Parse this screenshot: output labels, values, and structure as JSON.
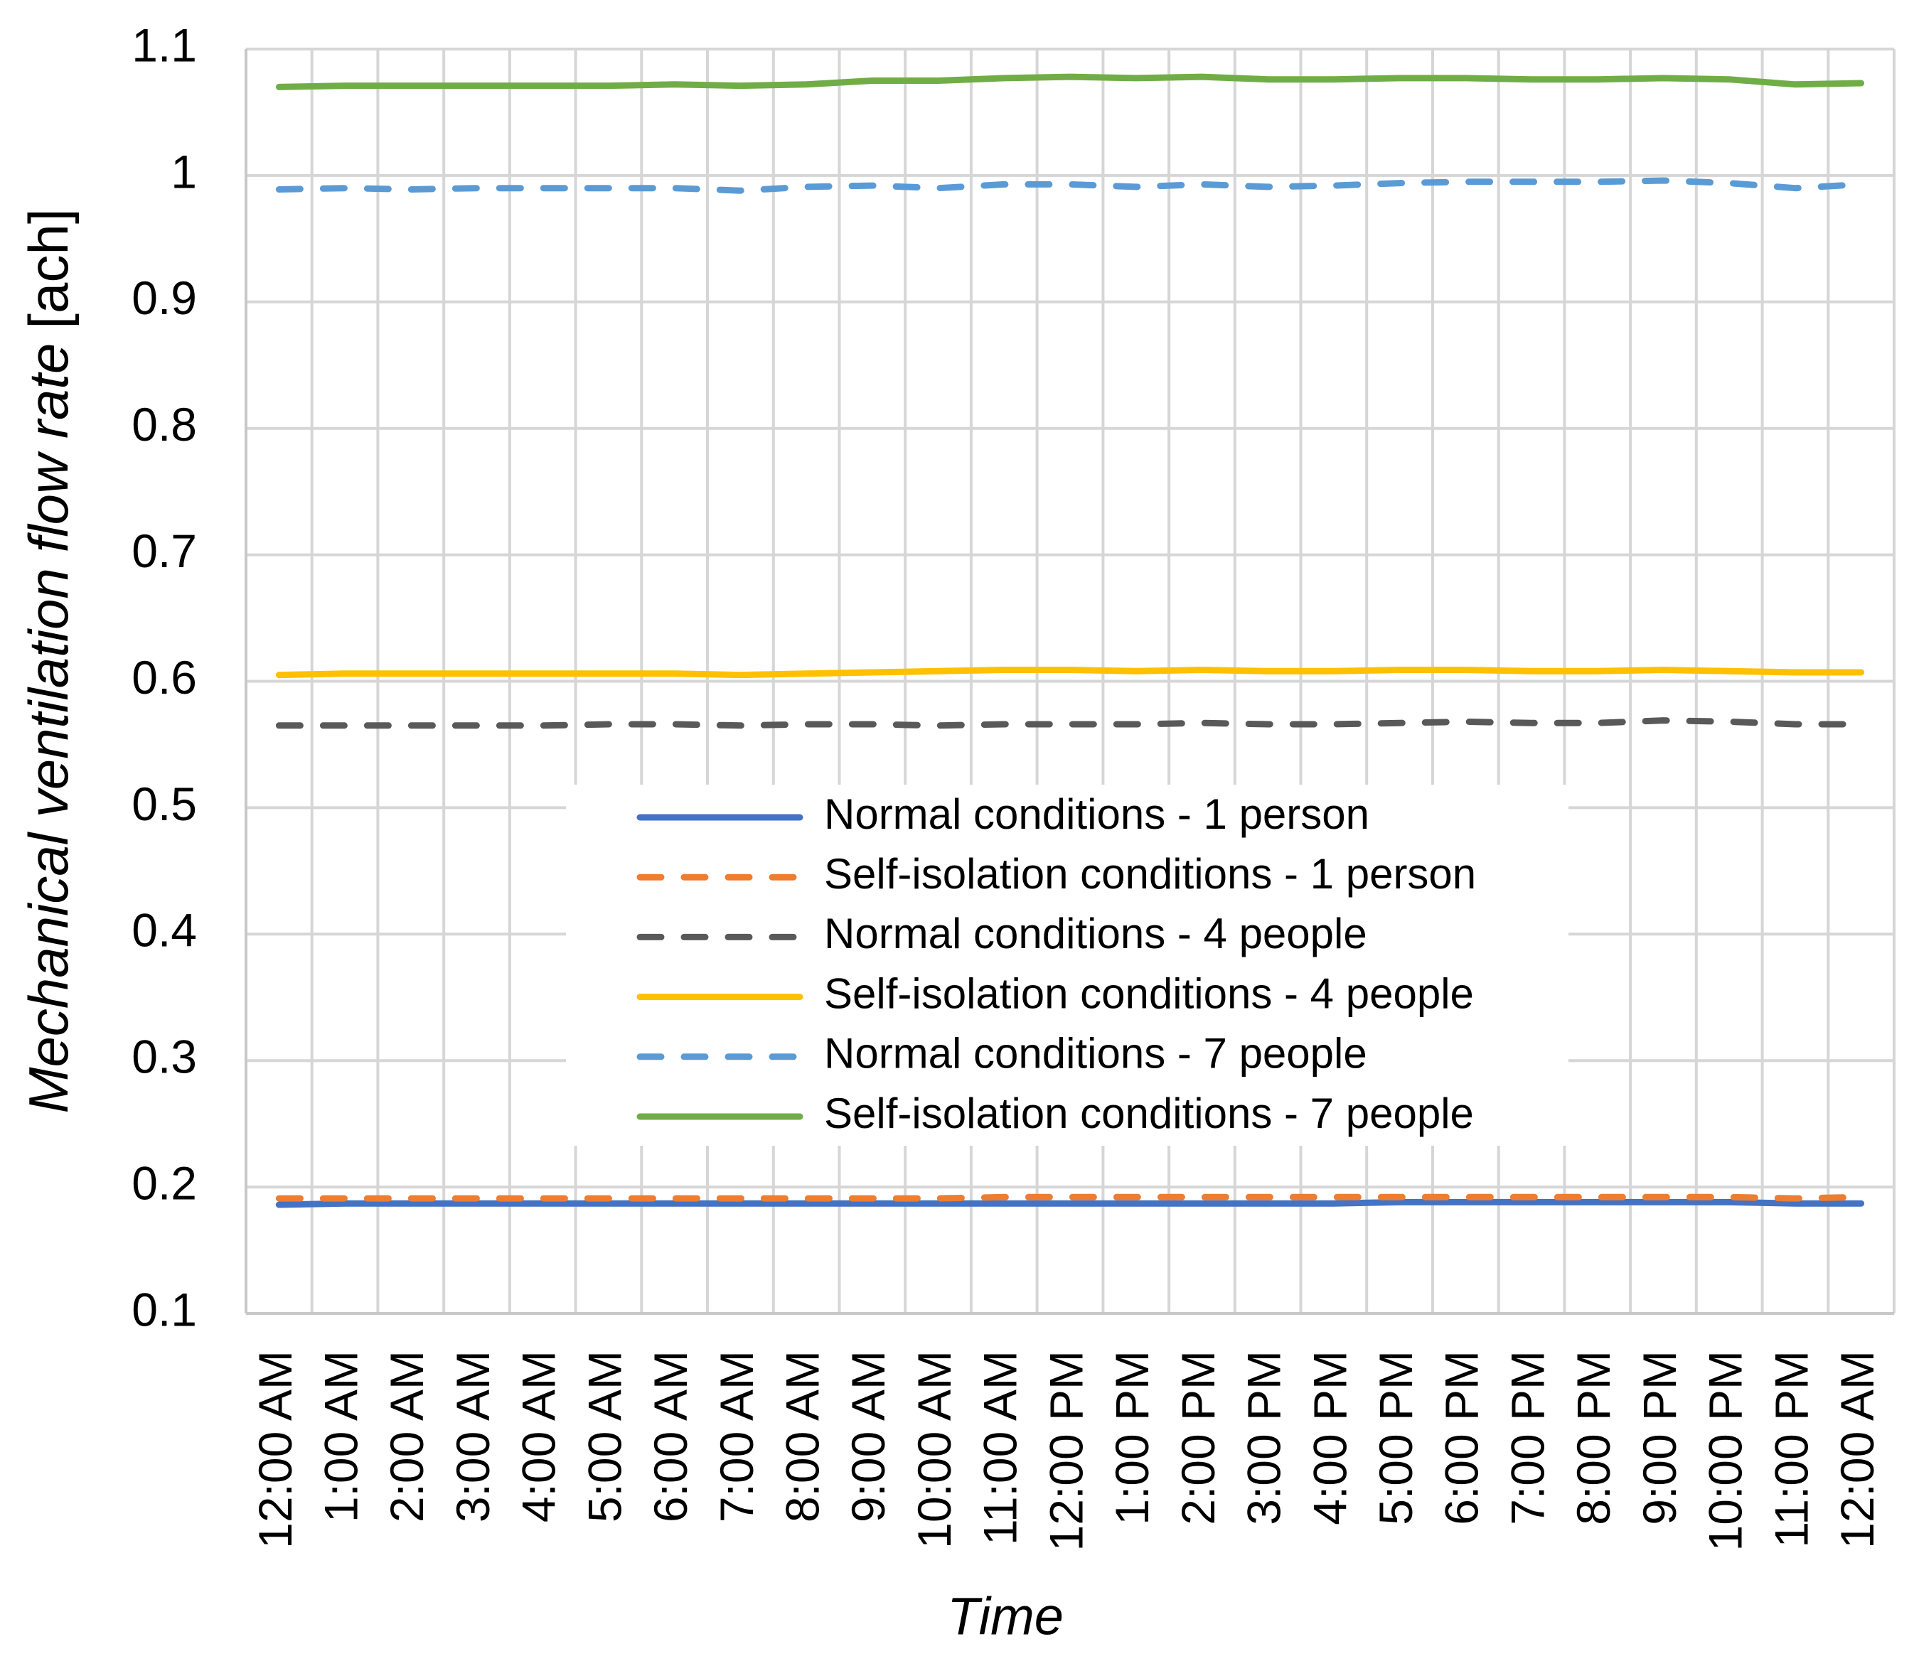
{
  "chart_data": {
    "type": "line",
    "xlabel": "Time",
    "ylabel": "Mechanical ventilation flow rate",
    "ylabel_unit": "[ach]",
    "ylim": [
      0.1,
      1.1
    ],
    "yticks": [
      0.1,
      0.2,
      0.3,
      0.4,
      0.5,
      0.6,
      0.7,
      0.8,
      0.9,
      1,
      1.1
    ],
    "grid": true,
    "legend_position": "center",
    "categories": [
      "12:00 AM",
      "1:00 AM",
      "2:00 AM",
      "3:00 AM",
      "4:00 AM",
      "5:00 AM",
      "6:00 AM",
      "7:00 AM",
      "8:00 AM",
      "9:00 AM",
      "10:00 AM",
      "11:00 AM",
      "12:00 PM",
      "1:00 PM",
      "2:00 PM",
      "3:00 PM",
      "4:00 PM",
      "5:00 PM",
      "6:00 PM",
      "7:00 PM",
      "8:00 PM",
      "9:00 PM",
      "10:00 PM",
      "11:00 PM",
      "12:00 AM"
    ],
    "series": [
      {
        "name": "Normal conditions - 1 person",
        "color": "#4472C4",
        "dashed": false,
        "values": [
          0.186,
          0.187,
          0.187,
          0.187,
          0.187,
          0.187,
          0.187,
          0.187,
          0.187,
          0.187,
          0.187,
          0.187,
          0.187,
          0.187,
          0.187,
          0.187,
          0.187,
          0.188,
          0.188,
          0.188,
          0.188,
          0.188,
          0.188,
          0.187,
          0.187
        ]
      },
      {
        "name": "Self-isolation conditions - 1 person",
        "color": "#ED7D31",
        "dashed": true,
        "values": [
          0.191,
          0.191,
          0.191,
          0.191,
          0.191,
          0.191,
          0.191,
          0.191,
          0.191,
          0.191,
          0.191,
          0.192,
          0.192,
          0.192,
          0.192,
          0.192,
          0.192,
          0.192,
          0.192,
          0.192,
          0.192,
          0.192,
          0.192,
          0.191,
          0.192
        ]
      },
      {
        "name": "Normal conditions - 4 people",
        "color": "#595959",
        "dashed": true,
        "values": [
          0.565,
          0.565,
          0.565,
          0.565,
          0.565,
          0.566,
          0.566,
          0.565,
          0.566,
          0.566,
          0.565,
          0.566,
          0.566,
          0.566,
          0.567,
          0.566,
          0.566,
          0.567,
          0.568,
          0.567,
          0.567,
          0.569,
          0.568,
          0.566,
          0.566
        ]
      },
      {
        "name": "Self-isolation conditions - 4 people",
        "color": "#FFC000",
        "dashed": false,
        "values": [
          0.605,
          0.606,
          0.606,
          0.606,
          0.606,
          0.606,
          0.606,
          0.605,
          0.606,
          0.607,
          0.608,
          0.609,
          0.609,
          0.608,
          0.609,
          0.608,
          0.608,
          0.609,
          0.609,
          0.608,
          0.608,
          0.609,
          0.608,
          0.607,
          0.607
        ]
      },
      {
        "name": "Normal conditions - 7 people",
        "color": "#5B9BD5",
        "dashed": true,
        "values": [
          0.989,
          0.99,
          0.989,
          0.99,
          0.99,
          0.99,
          0.99,
          0.988,
          0.991,
          0.992,
          0.99,
          0.993,
          0.993,
          0.991,
          0.993,
          0.991,
          0.992,
          0.994,
          0.995,
          0.995,
          0.995,
          0.996,
          0.994,
          0.99,
          0.993
        ]
      },
      {
        "name": "Self-isolation conditions - 7 people",
        "color": "#70AD47",
        "dashed": false,
        "values": [
          1.07,
          1.071,
          1.071,
          1.071,
          1.071,
          1.071,
          1.072,
          1.071,
          1.072,
          1.075,
          1.075,
          1.077,
          1.078,
          1.077,
          1.078,
          1.076,
          1.076,
          1.077,
          1.077,
          1.076,
          1.076,
          1.077,
          1.076,
          1.072,
          1.073
        ]
      }
    ]
  }
}
